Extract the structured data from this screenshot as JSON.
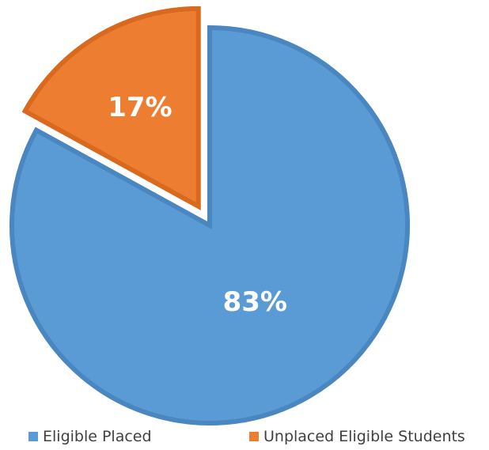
{
  "chart_data": {
    "type": "pie",
    "title": "",
    "categories": [
      "Eligible Placed",
      "Unplaced Eligible Students"
    ],
    "values": [
      83,
      17
    ],
    "labels": [
      "83%",
      "17%"
    ],
    "colors": [
      "#5b9bd5",
      "#ed7d31"
    ],
    "border_colors": [
      "#4a86c0",
      "#d9691e"
    ],
    "exploded": [
      false,
      true
    ],
    "legend_position": "bottom",
    "start_angle_deg": 0,
    "direction": "clockwise"
  },
  "legend": {
    "items": [
      {
        "label": "Eligible Placed",
        "color": "#5b9bd5"
      },
      {
        "label": "Unplaced Eligible Students",
        "color": "#ed7d31"
      }
    ]
  }
}
